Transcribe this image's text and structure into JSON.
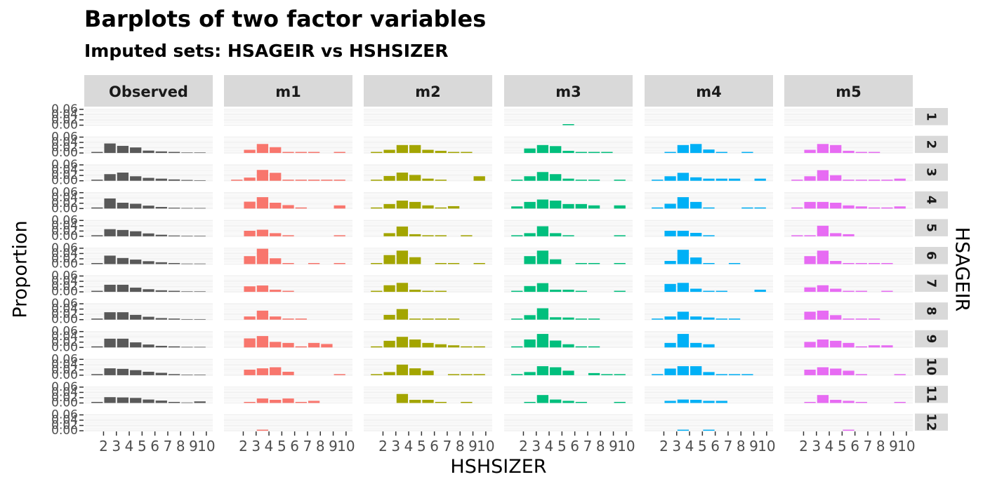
{
  "chart_data": {
    "type": "bar",
    "title": "Barplots of two factor variables",
    "subtitle": "Imputed sets:  HSAGEIR vs HSHSIZER",
    "xlabel": "HSHSIZER",
    "ylabel": "Proportion",
    "facet_row_label": "HSAGEIR",
    "columns": [
      "Observed",
      "m1",
      "m2",
      "m3",
      "m4",
      "m5"
    ],
    "rows": [
      "1",
      "2",
      "3",
      "4",
      "5",
      "6",
      "7",
      "8",
      "9",
      "10",
      "11",
      "12"
    ],
    "categories": [
      "2",
      "3",
      "4",
      "5",
      "6",
      "7",
      "8",
      "9",
      "10"
    ],
    "y_tick_labels": [
      "0.00",
      "0.02",
      "0.04",
      "0.06"
    ],
    "ylim": [
      0,
      0.065
    ],
    "grid": true,
    "colors": [
      "#595959",
      "#F8766D",
      "#A3A500",
      "#00BF7D",
      "#00B0F6",
      "#E76BF3"
    ],
    "values": [
      [
        [
          0,
          0,
          0,
          0,
          0,
          0,
          0,
          0,
          0
        ],
        [
          0.004,
          0.036,
          0.027,
          0.021,
          0.009,
          0.006,
          0.004,
          0.002,
          0.002
        ],
        [
          0.004,
          0.025,
          0.031,
          0.017,
          0.011,
          0.008,
          0.005,
          0.003,
          0.002
        ],
        [
          0.004,
          0.038,
          0.022,
          0.018,
          0.011,
          0.006,
          0.003,
          0.002,
          0.002
        ],
        [
          0.004,
          0.027,
          0.024,
          0.019,
          0.011,
          0.006,
          0.003,
          0.002,
          0.002
        ],
        [
          0.004,
          0.032,
          0.023,
          0.017,
          0.011,
          0.007,
          0.004,
          0.002,
          0.002
        ],
        [
          0.004,
          0.027,
          0.027,
          0.016,
          0.01,
          0.006,
          0.004,
          0.002,
          0.002
        ],
        [
          0.004,
          0.028,
          0.028,
          0.018,
          0.011,
          0.006,
          0.004,
          0.002,
          0.002
        ],
        [
          0.004,
          0.033,
          0.033,
          0.019,
          0.011,
          0.006,
          0.004,
          0.002,
          0.002
        ],
        [
          0.004,
          0.026,
          0.024,
          0.019,
          0.013,
          0.009,
          0.004,
          0.002,
          0.002
        ],
        [
          0.004,
          0.022,
          0.021,
          0.019,
          0.013,
          0.009,
          0.004,
          0.002,
          0.006
        ],
        [
          0,
          0,
          0,
          0,
          0,
          0,
          0,
          0,
          0
        ]
      ],
      [
        [
          0,
          0,
          0,
          0,
          0,
          0,
          0,
          0,
          0
        ],
        [
          0,
          0.012,
          0.034,
          0.022,
          0.004,
          0.004,
          0.004,
          0,
          0.004
        ],
        [
          0.004,
          0.012,
          0.041,
          0.03,
          0.004,
          0.004,
          0.004,
          0.004,
          0.004
        ],
        [
          0,
          0.026,
          0.043,
          0.022,
          0.013,
          0.004,
          0,
          0,
          0.012
        ],
        [
          0,
          0.021,
          0.025,
          0.012,
          0.004,
          0,
          0,
          0,
          0.004
        ],
        [
          0,
          0.03,
          0.058,
          0.022,
          0.004,
          0,
          0.004,
          0,
          0.004
        ],
        [
          0,
          0.021,
          0.024,
          0.008,
          0.004,
          0,
          0,
          0,
          0
        ],
        [
          0,
          0.012,
          0.034,
          0.012,
          0.004,
          0.004,
          0,
          0,
          0
        ],
        [
          0,
          0.034,
          0.043,
          0.021,
          0.017,
          0.004,
          0.017,
          0.013,
          0
        ],
        [
          0,
          0.021,
          0.026,
          0.03,
          0.013,
          0,
          0,
          0,
          0.004
        ],
        [
          0,
          0.004,
          0.017,
          0.012,
          0.017,
          0.004,
          0.008,
          0,
          0
        ],
        [
          0,
          0,
          0.004,
          0,
          0,
          0,
          0,
          0,
          0
        ]
      ],
      [
        [
          0,
          0,
          0,
          0,
          0,
          0,
          0,
          0,
          0
        ],
        [
          0.004,
          0.012,
          0.03,
          0.03,
          0.012,
          0.008,
          0.004,
          0.004,
          0
        ],
        [
          0.004,
          0.018,
          0.031,
          0.022,
          0.008,
          0.004,
          0,
          0,
          0.017
        ],
        [
          0.004,
          0.017,
          0.03,
          0.025,
          0.012,
          0.004,
          0.009,
          0,
          0
        ],
        [
          0,
          0.012,
          0.037,
          0.008,
          0.004,
          0.004,
          0,
          0.004,
          0
        ],
        [
          0.004,
          0.034,
          0.051,
          0.026,
          0,
          0.004,
          0.004,
          0,
          0.004
        ],
        [
          0.004,
          0.025,
          0.034,
          0.008,
          0.004,
          0.004,
          0,
          0,
          0
        ],
        [
          0,
          0.018,
          0.04,
          0.004,
          0.004,
          0.004,
          0.004,
          0,
          0
        ],
        [
          0.004,
          0.025,
          0.04,
          0.03,
          0.017,
          0.012,
          0.008,
          0.004,
          0.004
        ],
        [
          0.004,
          0.012,
          0.04,
          0.026,
          0.017,
          0,
          0.004,
          0.004,
          0.004
        ],
        [
          0,
          0,
          0.034,
          0.012,
          0.012,
          0.004,
          0,
          0.004,
          0
        ],
        [
          0,
          0,
          0,
          0,
          0,
          0,
          0,
          0,
          0
        ]
      ],
      [
        [
          0,
          0,
          0,
          0,
          0.004,
          0,
          0,
          0,
          0
        ],
        [
          0,
          0.017,
          0.03,
          0.026,
          0.008,
          0.004,
          0.004,
          0.004,
          0
        ],
        [
          0.004,
          0.017,
          0.033,
          0.025,
          0.008,
          0.004,
          0.004,
          0,
          0.004
        ],
        [
          0.008,
          0.025,
          0.034,
          0.03,
          0.017,
          0.017,
          0.012,
          0,
          0.012
        ],
        [
          0.004,
          0.012,
          0.038,
          0.012,
          0.004,
          0,
          0,
          0,
          0.004
        ],
        [
          0,
          0.03,
          0.051,
          0.018,
          0,
          0.004,
          0.004,
          0,
          0.004
        ],
        [
          0.004,
          0.022,
          0.033,
          0.008,
          0.008,
          0.004,
          0,
          0,
          0.004
        ],
        [
          0.004,
          0.017,
          0.043,
          0.009,
          0.008,
          0.004,
          0.004,
          0,
          0
        ],
        [
          0.004,
          0.03,
          0.051,
          0.026,
          0.012,
          0.004,
          0.004,
          0,
          0
        ],
        [
          0.004,
          0.012,
          0.034,
          0.03,
          0.017,
          0,
          0.008,
          0.004,
          0.004
        ],
        [
          0,
          0.004,
          0.03,
          0.013,
          0.008,
          0.004,
          0,
          0,
          0.004
        ],
        [
          0,
          0,
          0,
          0,
          0,
          0,
          0,
          0,
          0
        ]
      ],
      [
        [
          0,
          0,
          0,
          0,
          0,
          0,
          0,
          0,
          0
        ],
        [
          0,
          0.004,
          0.03,
          0.034,
          0.013,
          0.004,
          0,
          0.004,
          0
        ],
        [
          0.004,
          0.017,
          0.03,
          0.013,
          0.008,
          0.008,
          0.008,
          0,
          0.008
        ],
        [
          0.004,
          0.018,
          0.043,
          0.025,
          0.004,
          0,
          0,
          0.004,
          0.004
        ],
        [
          0,
          0.021,
          0.021,
          0.013,
          0.004,
          0,
          0,
          0,
          0
        ],
        [
          0,
          0.012,
          0.054,
          0.025,
          0.004,
          0,
          0.004,
          0,
          0
        ],
        [
          0,
          0.03,
          0.034,
          0.012,
          0.004,
          0.004,
          0,
          0,
          0.008
        ],
        [
          0.004,
          0.012,
          0.03,
          0.012,
          0.008,
          0.004,
          0.004,
          0,
          0
        ],
        [
          0,
          0.017,
          0.051,
          0.017,
          0.012,
          0,
          0,
          0,
          0
        ],
        [
          0.004,
          0.025,
          0.034,
          0.034,
          0.012,
          0.004,
          0.004,
          0.004,
          0
        ],
        [
          0,
          0.008,
          0.013,
          0.012,
          0.008,
          0.008,
          0,
          0,
          0
        ],
        [
          0,
          0,
          0.004,
          0,
          0.004,
          0,
          0,
          0,
          0
        ]
      ],
      [
        [
          0,
          0,
          0,
          0,
          0,
          0,
          0,
          0,
          0
        ],
        [
          0,
          0.012,
          0.034,
          0.03,
          0.008,
          0.004,
          0.004,
          0,
          0
        ],
        [
          0.004,
          0.017,
          0.04,
          0.021,
          0.004,
          0.004,
          0.004,
          0.004,
          0.008
        ],
        [
          0.004,
          0.025,
          0.025,
          0.022,
          0.012,
          0.008,
          0.004,
          0.004,
          0.008
        ],
        [
          0.004,
          0.004,
          0.04,
          0.012,
          0.008,
          0,
          0,
          0,
          0
        ],
        [
          0,
          0.03,
          0.051,
          0.012,
          0.004,
          0.004,
          0.004,
          0.004,
          0
        ],
        [
          0,
          0.017,
          0.025,
          0.012,
          0.004,
          0.004,
          0,
          0.004,
          0
        ],
        [
          0,
          0.03,
          0.034,
          0.017,
          0.004,
          0.004,
          0.004,
          0,
          0
        ],
        [
          0,
          0.021,
          0.03,
          0.025,
          0.017,
          0.004,
          0.008,
          0.008,
          0
        ],
        [
          0,
          0.021,
          0.03,
          0.025,
          0.017,
          0.004,
          0,
          0,
          0.004
        ],
        [
          0,
          0.004,
          0.03,
          0.012,
          0.008,
          0.004,
          0,
          0,
          0.004
        ],
        [
          0,
          0,
          0,
          0,
          0.004,
          0,
          0,
          0,
          0
        ]
      ]
    ]
  }
}
